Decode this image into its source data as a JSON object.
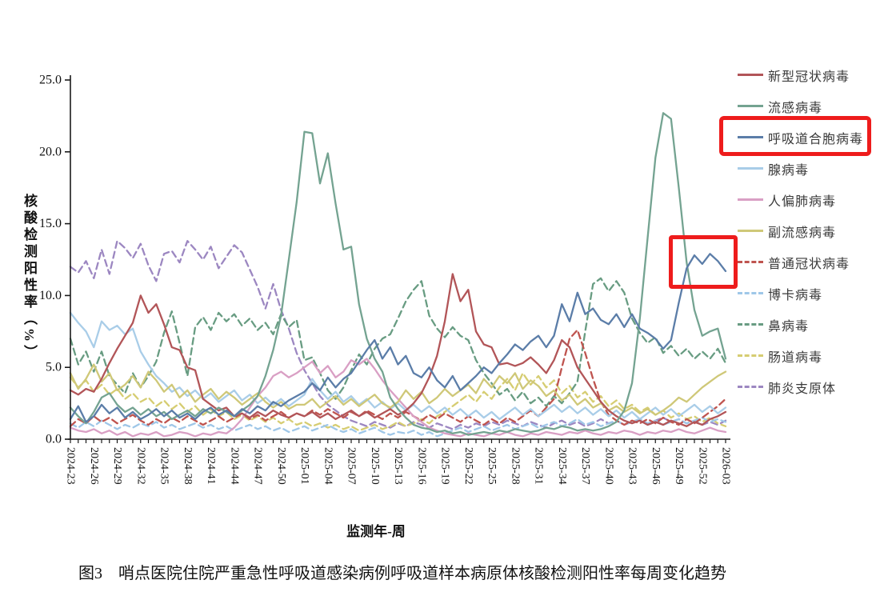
{
  "figure": {
    "caption": "图3　哨点医院住院严重急性呼吸道感染病例呼吸道样本病原体核酸检测阳性率每周变化趋势",
    "y_axis_label": "核酸检测阳性率（%）",
    "x_axis_label": "监测年-周"
  },
  "annotations": {
    "highlight_color": "#ee1c1c",
    "boxes": [
      {
        "name": "legend-highlight",
        "target": "呼吸道合胞病毒 legend entry"
      },
      {
        "name": "data-highlight",
        "target": "呼吸道合胞病毒 peak, weeks 2025-49 to 2026-03"
      }
    ]
  },
  "chart_data": {
    "type": "line",
    "title": "哨点医院住院严重急性呼吸道感染病例呼吸道样本病原体核酸检测阳性率每周变化趋势",
    "xlabel": "监测年-周",
    "ylabel": "核酸检测阳性率（%）",
    "ylim": [
      0,
      25
    ],
    "yticks": [
      0,
      5,
      10,
      15,
      20,
      25
    ],
    "ytick_labels": [
      "0.0",
      "5.0",
      "10.0",
      "15.0",
      "20.0",
      "25.0"
    ],
    "x_tick_label_every": 3,
    "grid": false,
    "legend_position": "right",
    "categories": [
      "2024-23",
      "2024-24",
      "2024-25",
      "2024-26",
      "2024-27",
      "2024-28",
      "2024-29",
      "2024-30",
      "2024-31",
      "2024-32",
      "2024-33",
      "2024-34",
      "2024-35",
      "2024-36",
      "2024-37",
      "2024-38",
      "2024-39",
      "2024-40",
      "2024-41",
      "2024-42",
      "2024-43",
      "2024-44",
      "2024-45",
      "2024-46",
      "2024-47",
      "2024-48",
      "2024-49",
      "2024-50",
      "2024-51",
      "2024-52",
      "2025-01",
      "2025-02",
      "2025-03",
      "2025-04",
      "2025-05",
      "2025-06",
      "2025-07",
      "2025-08",
      "2025-09",
      "2025-10",
      "2025-11",
      "2025-12",
      "2025-13",
      "2025-14",
      "2025-15",
      "2025-16",
      "2025-17",
      "2025-18",
      "2025-19",
      "2025-20",
      "2025-21",
      "2025-22",
      "2025-23",
      "2025-24",
      "2025-25",
      "2025-26",
      "2025-27",
      "2025-28",
      "2025-29",
      "2025-30",
      "2025-31",
      "2025-32",
      "2025-33",
      "2025-34",
      "2025-35",
      "2025-36",
      "2025-37",
      "2025-38",
      "2025-39",
      "2025-40",
      "2025-41",
      "2025-42",
      "2025-43",
      "2025-44",
      "2025-45",
      "2025-46",
      "2025-47",
      "2025-48",
      "2025-49",
      "2025-50",
      "2025-51",
      "2025-52",
      "2026-01",
      "2026-02",
      "2026-03"
    ],
    "series": [
      {
        "name": "新型冠状病毒",
        "color": "#b25558",
        "dash": false,
        "values": [
          3.4,
          3.1,
          3.5,
          3.3,
          4.2,
          5.3,
          6.3,
          7.2,
          8.1,
          10.0,
          8.8,
          9.4,
          8.0,
          6.4,
          6.2,
          5.0,
          4.8,
          2.8,
          2.4,
          2.0,
          2.2,
          1.6,
          1.8,
          1.5,
          1.9,
          1.6,
          2.0,
          1.7,
          1.5,
          1.8,
          1.6,
          1.9,
          1.5,
          1.8,
          1.4,
          1.7,
          2.0,
          1.6,
          1.9,
          1.5,
          1.8,
          2.1,
          1.7,
          2.0,
          2.5,
          3.2,
          4.3,
          5.8,
          8.2,
          11.5,
          9.6,
          10.4,
          7.5,
          6.6,
          6.4,
          5.2,
          5.3,
          5.1,
          5.3,
          5.7,
          5.2,
          4.6,
          5.5,
          6.9,
          6.4,
          5.0,
          4.2,
          3.4,
          2.6,
          2.0,
          1.6,
          1.3,
          1.1,
          1.3,
          1.0,
          1.2,
          1.0,
          1.3,
          1.1,
          0.9,
          1.2,
          1.0,
          1.4,
          1.6,
          1.9
        ]
      },
      {
        "name": "流感病毒",
        "color": "#74a391",
        "dash": false,
        "values": [
          2.2,
          1.6,
          1.1,
          1.9,
          2.9,
          3.2,
          2.4,
          1.9,
          2.2,
          1.7,
          2.1,
          1.6,
          1.9,
          1.4,
          1.7,
          2.0,
          1.6,
          2.1,
          1.8,
          2.2,
          1.9,
          1.6,
          2.0,
          2.4,
          3.0,
          4.4,
          6.2,
          8.6,
          12.5,
          16.5,
          21.4,
          21.3,
          17.8,
          19.9,
          16.4,
          13.2,
          13.4,
          9.4,
          7.0,
          5.6,
          4.7,
          2.9,
          2.1,
          1.5,
          1.0,
          0.8,
          0.7,
          0.5,
          0.6,
          0.4,
          0.5,
          0.3,
          0.4,
          0.5,
          0.4,
          0.6,
          0.5,
          0.7,
          0.6,
          0.5,
          0.6,
          0.8,
          0.7,
          0.9,
          0.8,
          0.6,
          0.7,
          0.6,
          0.7,
          0.9,
          1.2,
          2.0,
          3.9,
          8.4,
          14.0,
          19.6,
          22.7,
          22.3,
          17.5,
          12.3,
          9.0,
          7.2,
          7.5,
          7.7,
          5.6
        ]
      },
      {
        "name": "呼吸道合胞病毒",
        "color": "#5b7da8",
        "dash": false,
        "values": [
          1.4,
          2.3,
          1.2,
          1.6,
          2.4,
          1.8,
          2.2,
          1.5,
          1.9,
          1.4,
          1.7,
          2.1,
          1.6,
          2.0,
          1.5,
          1.8,
          1.4,
          1.9,
          2.2,
          1.7,
          2.0,
          1.6,
          2.1,
          1.8,
          2.3,
          2.0,
          2.6,
          2.3,
          2.7,
          3.0,
          3.3,
          3.9,
          3.4,
          4.3,
          3.6,
          4.2,
          4.6,
          5.4,
          6.2,
          6.9,
          5.6,
          6.4,
          5.2,
          5.8,
          4.6,
          4.3,
          5.0,
          4.1,
          3.6,
          4.4,
          3.4,
          3.9,
          4.4,
          5.0,
          4.6,
          5.3,
          5.9,
          6.6,
          6.2,
          6.8,
          7.2,
          6.4,
          7.2,
          9.4,
          8.2,
          10.2,
          8.7,
          9.1,
          8.3,
          8.0,
          8.7,
          7.8,
          8.7,
          7.7,
          7.4,
          7.0,
          6.3,
          6.9,
          9.5,
          11.9,
          12.8,
          12.2,
          12.9,
          12.4,
          11.7
        ]
      },
      {
        "name": "腺病毒",
        "color": "#a9cde8",
        "dash": false,
        "values": [
          8.8,
          8.1,
          7.5,
          6.4,
          8.2,
          7.6,
          7.9,
          7.3,
          7.7,
          6.1,
          5.2,
          4.4,
          3.9,
          3.3,
          3.6,
          3.0,
          3.4,
          2.8,
          3.2,
          2.6,
          3.0,
          3.4,
          2.7,
          3.1,
          2.5,
          2.9,
          2.4,
          2.8,
          2.3,
          2.7,
          3.1,
          4.2,
          3.4,
          2.8,
          3.3,
          2.6,
          3.0,
          2.4,
          2.8,
          2.2,
          2.6,
          2.1,
          2.5,
          2.0,
          2.4,
          1.9,
          2.3,
          1.8,
          2.2,
          1.7,
          2.1,
          1.6,
          2.0,
          1.5,
          1.9,
          1.4,
          1.8,
          2.2,
          1.7,
          2.1,
          1.6,
          2.0,
          2.4,
          1.9,
          2.3,
          1.8,
          2.2,
          1.7,
          2.1,
          1.6,
          2.0,
          1.5,
          1.9,
          1.4,
          1.8,
          2.2,
          1.7,
          2.1,
          1.6,
          2.0,
          2.4,
          1.9,
          2.3,
          1.8,
          2.2
        ]
      },
      {
        "name": "人偏肺病毒",
        "color": "#d99fc4",
        "dash": false,
        "values": [
          0.8,
          0.6,
          0.5,
          0.7,
          0.4,
          0.6,
          0.3,
          0.5,
          0.2,
          0.4,
          0.3,
          0.5,
          0.2,
          0.3,
          0.5,
          0.4,
          0.2,
          0.4,
          0.3,
          0.5,
          0.4,
          0.8,
          1.4,
          2.2,
          3.0,
          3.6,
          4.4,
          4.7,
          4.3,
          4.6,
          5.0,
          5.4,
          4.6,
          5.1,
          4.3,
          4.7,
          5.5,
          5.2,
          5.6,
          4.9,
          4.1,
          3.4,
          2.8,
          2.2,
          1.6,
          1.2,
          0.8,
          0.6,
          0.4,
          0.3,
          0.2,
          0.4,
          0.3,
          0.2,
          0.4,
          0.3,
          0.5,
          0.3,
          0.2,
          0.4,
          0.3,
          0.5,
          0.4,
          0.3,
          0.5,
          0.4,
          0.6,
          0.4,
          0.3,
          0.5,
          0.4,
          0.6,
          0.5,
          0.3,
          0.5,
          0.4,
          0.6,
          0.5,
          0.7,
          0.5,
          0.4,
          0.6,
          0.8,
          0.6,
          0.5
        ]
      },
      {
        "name": "副流感病毒",
        "color": "#cfc878",
        "dash": false,
        "values": [
          4.6,
          3.5,
          4.2,
          5.2,
          4.0,
          4.6,
          3.4,
          3.8,
          4.4,
          3.6,
          4.7,
          4.1,
          3.3,
          3.8,
          2.9,
          3.4,
          2.6,
          3.1,
          3.5,
          2.8,
          3.3,
          2.9,
          2.4,
          2.8,
          3.2,
          2.6,
          2.2,
          2.6,
          2.1,
          2.4,
          2.4,
          2.8,
          2.2,
          2.6,
          3.0,
          2.4,
          2.8,
          2.3,
          2.7,
          3.1,
          2.5,
          2.2,
          2.6,
          3.4,
          2.8,
          3.3,
          2.5,
          2.9,
          3.5,
          3.0,
          3.4,
          3.8,
          3.2,
          4.2,
          3.6,
          4.4,
          3.9,
          4.6,
          3.5,
          4.1,
          3.7,
          3.0,
          3.4,
          2.7,
          3.1,
          2.4,
          2.8,
          2.2,
          2.5,
          2.0,
          2.3,
          1.9,
          2.2,
          1.8,
          2.1,
          1.7,
          2.0,
          2.4,
          2.9,
          2.6,
          3.1,
          3.6,
          4.0,
          4.4,
          4.7
        ]
      },
      {
        "name": "普通冠状病毒",
        "color": "#bf544f",
        "dash": true,
        "values": [
          0.9,
          1.4,
          1.1,
          1.6,
          1.2,
          1.5,
          1.1,
          1.4,
          1.7,
          1.3,
          1.0,
          1.4,
          1.1,
          1.5,
          1.2,
          1.6,
          1.3,
          1.0,
          1.3,
          1.6,
          1.2,
          1.5,
          1.8,
          1.4,
          1.7,
          1.3,
          1.6,
          1.9,
          1.5,
          1.8,
          1.6,
          2.0,
          1.7,
          2.1,
          1.8,
          1.5,
          1.9,
          1.6,
          2.0,
          1.7,
          1.4,
          1.8,
          1.5,
          1.9,
          1.6,
          1.3,
          1.7,
          1.4,
          1.8,
          1.5,
          1.2,
          1.6,
          1.3,
          1.0,
          1.4,
          1.1,
          1.5,
          1.2,
          1.6,
          2.0,
          1.6,
          2.2,
          2.8,
          5.0,
          7.0,
          7.6,
          6.0,
          4.2,
          2.6,
          1.7,
          1.3,
          1.0,
          1.3,
          1.1,
          1.4,
          1.1,
          1.5,
          1.2,
          1.0,
          1.4,
          1.1,
          1.5,
          1.9,
          2.3,
          2.8
        ]
      },
      {
        "name": "博卡病毒",
        "color": "#9fc7e8",
        "dash": true,
        "values": [
          1.1,
          0.8,
          1.2,
          0.9,
          1.3,
          1.0,
          0.7,
          1.0,
          0.8,
          1.1,
          0.9,
          1.2,
          0.8,
          1.0,
          0.7,
          0.9,
          1.1,
          0.8,
          1.0,
          0.7,
          0.9,
          0.6,
          0.8,
          1.0,
          0.7,
          0.9,
          0.6,
          0.8,
          0.5,
          0.7,
          0.9,
          0.6,
          0.8,
          1.0,
          0.7,
          0.5,
          0.7,
          0.4,
          0.6,
          0.8,
          0.5,
          0.3,
          0.5,
          0.4,
          0.6,
          0.3,
          0.5,
          0.2,
          0.4,
          0.6,
          0.8,
          0.5,
          0.7,
          0.9,
          0.6,
          0.8,
          1.0,
          0.7,
          0.9,
          1.1,
          0.8,
          1.0,
          1.2,
          0.9,
          1.1,
          1.4,
          1.0,
          1.2,
          0.9,
          1.1,
          1.3,
          1.0,
          1.2,
          1.4,
          1.1,
          1.3,
          1.0,
          1.2,
          1.4,
          1.1,
          1.3,
          1.5,
          1.2,
          1.4,
          1.2
        ]
      },
      {
        "name": "鼻病毒",
        "color": "#689c82",
        "dash": true,
        "values": [
          7.0,
          5.2,
          6.1,
          4.7,
          6.1,
          4.4,
          3.8,
          3.2,
          4.6,
          3.6,
          4.4,
          5.4,
          7.4,
          8.9,
          6.7,
          4.4,
          7.8,
          8.5,
          7.6,
          8.8,
          8.2,
          8.7,
          7.9,
          8.4,
          7.6,
          8.1,
          7.3,
          8.7,
          7.8,
          8.3,
          5.5,
          5.7,
          4.6,
          3.4,
          2.8,
          3.6,
          4.8,
          5.9,
          5.2,
          6.3,
          7.0,
          7.3,
          8.4,
          9.6,
          10.4,
          11.0,
          8.6,
          7.7,
          7.1,
          7.8,
          7.2,
          6.9,
          5.5,
          4.6,
          3.9,
          3.1,
          3.5,
          2.7,
          3.3,
          2.5,
          2.9,
          2.3,
          3.0,
          2.5,
          3.2,
          4.0,
          7.5,
          10.8,
          11.2,
          10.3,
          11.0,
          10.2,
          8.4,
          7.4,
          6.7,
          7.1,
          6.0,
          6.5,
          5.8,
          6.3,
          5.6,
          6.1,
          5.6,
          6.3,
          5.3
        ]
      },
      {
        "name": "肠道病毒",
        "color": "#d6cd72",
        "dash": true,
        "values": [
          4.3,
          3.6,
          4.1,
          3.3,
          3.8,
          3.1,
          3.5,
          2.8,
          3.2,
          2.6,
          2.9,
          2.3,
          2.7,
          2.1,
          2.5,
          1.9,
          2.3,
          1.7,
          2.1,
          1.6,
          1.9,
          1.4,
          1.7,
          1.3,
          1.6,
          1.2,
          1.5,
          1.1,
          1.4,
          1.0,
          1.2,
          0.9,
          1.1,
          0.8,
          1.0,
          0.7,
          0.9,
          0.6,
          0.8,
          1.0,
          0.7,
          0.9,
          1.2,
          0.9,
          1.1,
          1.4,
          1.1,
          1.6,
          1.9,
          2.3,
          2.7,
          3.1,
          2.6,
          3.3,
          2.8,
          3.6,
          4.2,
          3.4,
          4.6,
          3.8,
          4.4,
          3.6,
          4.1,
          3.2,
          3.7,
          2.9,
          3.3,
          2.6,
          3.0,
          2.3,
          2.7,
          2.1,
          2.4,
          1.9,
          2.2,
          1.7,
          2.0,
          1.5,
          1.8,
          1.4,
          1.6,
          1.2,
          1.5,
          1.1,
          0.9
        ]
      },
      {
        "name": "肺炎支原体",
        "color": "#9c87c1",
        "dash": true,
        "values": [
          12.0,
          11.6,
          12.4,
          11.2,
          13.2,
          11.5,
          13.8,
          13.3,
          12.6,
          13.6,
          12.1,
          11.0,
          12.9,
          13.1,
          12.3,
          13.8,
          13.2,
          12.5,
          13.4,
          11.9,
          12.7,
          13.5,
          13.0,
          11.8,
          10.6,
          9.1,
          10.8,
          9.0,
          7.7,
          6.0,
          4.8,
          3.9,
          3.0,
          2.4,
          2.0,
          1.6,
          1.3,
          1.1,
          0.9,
          1.2,
          1.0,
          0.8,
          1.1,
          0.9,
          1.2,
          1.0,
          0.8,
          1.1,
          0.9,
          0.7,
          1.0,
          0.8,
          1.1,
          0.9,
          1.2,
          1.0,
          1.3,
          1.1,
          0.9,
          1.2,
          1.0,
          0.8,
          1.1,
          1.3,
          1.0,
          1.2,
          0.9,
          1.1,
          1.4,
          1.1,
          1.3,
          1.0,
          1.2,
          1.4,
          1.1,
          1.3,
          1.5,
          1.2,
          1.4,
          1.1,
          1.3,
          1.0,
          1.2,
          1.0,
          1.3
        ]
      }
    ]
  }
}
